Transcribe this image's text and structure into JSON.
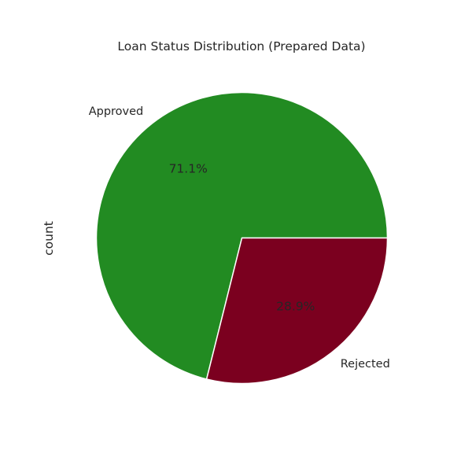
{
  "chart_data": {
    "type": "pie",
    "title": "Loan Status Distribution (Prepared Data)",
    "ylabel": "count",
    "categories": [
      "Approved",
      "Rejected"
    ],
    "values": [
      71.1,
      28.9
    ],
    "value_labels": [
      "71.1%",
      "28.9%"
    ],
    "colors": [
      "#228b22",
      "#7b001f"
    ],
    "start_angle_deg": 0,
    "direction": "counterclockwise"
  }
}
